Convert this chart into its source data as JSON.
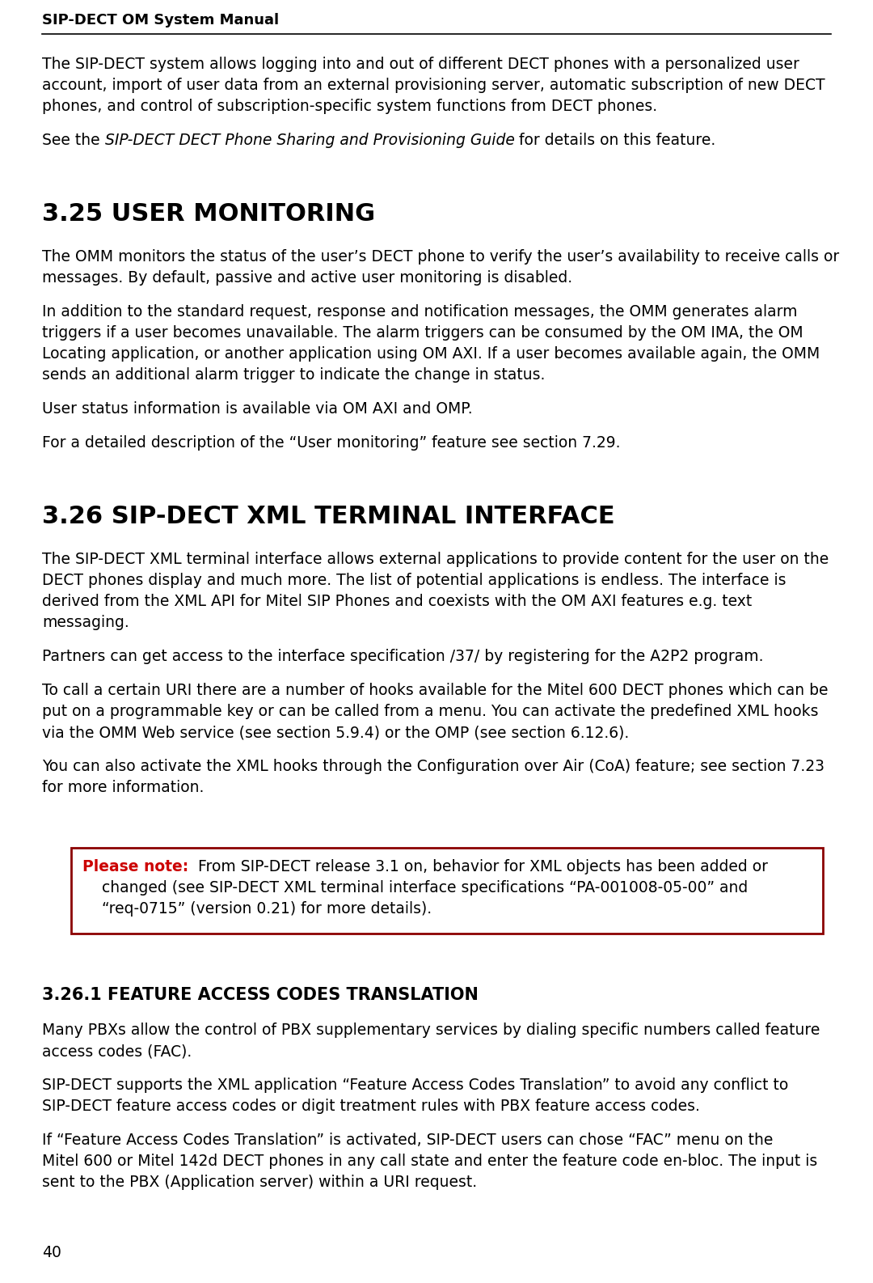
{
  "header_text": "SIP-DECT OM System Manual",
  "footer_text": "40",
  "bg_color": "#ffffff",
  "text_color": "#000000",
  "header_color": "#000000",
  "red_color": "#cc0000",
  "border_color": "#8B0000",
  "sections": [
    {
      "type": "intro_paragraph",
      "groups": [
        {
          "lines": [
            "The SIP-DECT system allows logging into and out of different DECT phones with a personalized user",
            "account, import of user data from an external provisioning server, automatic subscription of new DECT",
            "phones, and control of subscription-specific system functions from DECT phones."
          ]
        },
        {
          "lines": [
            {
              "parts": [
                {
                  "text": "See the ",
                  "style": "normal"
                },
                {
                  "text": "SIP-DECT DECT Phone Sharing and Provisioning Guide",
                  "style": "italic"
                },
                {
                  "text": " for details on this feature.",
                  "style": "normal"
                }
              ]
            }
          ]
        }
      ]
    },
    {
      "type": "heading",
      "text": "3.25 USER MONITORING"
    },
    {
      "type": "paragraph",
      "groups": [
        {
          "lines": [
            "The OMM monitors the status of the user’s DECT phone to verify the user’s availability to receive calls or",
            "messages. By default, passive and active user monitoring is disabled."
          ]
        },
        {
          "lines": [
            "In addition to the standard request, response and notification messages, the OMM generates alarm",
            "triggers if a user becomes unavailable. The alarm triggers can be consumed by the OM IMA, the OM",
            "Locating application, or another application using OM AXI. If a user becomes available again, the OMM",
            "sends an additional alarm trigger to indicate the change in status."
          ]
        },
        {
          "lines": [
            "User status information is available via OM AXI and OMP."
          ]
        },
        {
          "lines": [
            "For a detailed description of the “User monitoring” feature see section 7.29."
          ]
        }
      ]
    },
    {
      "type": "heading",
      "text": "3.26 SIP-DECT XML TERMINAL INTERFACE"
    },
    {
      "type": "paragraph",
      "groups": [
        {
          "lines": [
            "The SIP-DECT XML terminal interface allows external applications to provide content for the user on the",
            "DECT phones display and much more. The list of potential applications is endless. The interface is",
            "derived from the XML API for Mitel SIP Phones and coexists with the OM AXI features e.g. text",
            "messaging."
          ]
        },
        {
          "lines": [
            "Partners can get access to the interface specification /37/ by registering for the A2P2 program."
          ]
        },
        {
          "lines": [
            "To call a certain URI there are a number of hooks available for the Mitel 600 DECT phones which can be",
            "put on a programmable key or can be called from a menu. You can activate the predefined XML hooks",
            "via the OMM Web service (see section 5.9.4) or the OMP (see section 6.12.6)."
          ]
        },
        {
          "lines": [
            "You can also activate the XML hooks through the Configuration over Air (CoA) feature; see section 7.23",
            "for more information."
          ]
        }
      ]
    },
    {
      "type": "note_box",
      "bold_prefix": "Please note:",
      "line1_rest": "  From SIP-DECT release 3.1 on, behavior for XML objects has been added or",
      "line2": "    changed (see SIP-DECT XML terminal interface specifications “PA-001008-05-00” and",
      "line3": "    “req-0715” (version 0.21) for more details)."
    },
    {
      "type": "subheading",
      "text": "3.26.1 FEATURE ACCESS CODES TRANSLATION"
    },
    {
      "type": "paragraph",
      "groups": [
        {
          "lines": [
            "Many PBXs allow the control of PBX supplementary services by dialing specific numbers called feature",
            "access codes (FAC)."
          ]
        },
        {
          "lines": [
            "SIP-DECT supports the XML application “Feature Access Codes Translation” to avoid any conflict to",
            "SIP-DECT feature access codes or digit treatment rules with PBX feature access codes."
          ]
        },
        {
          "lines": [
            "If “Feature Access Codes Translation” is activated, SIP-DECT users can chose “FAC” menu on the",
            "Mitel 600 or Mitel 142d DECT phones in any call state and enter the feature code en-bloc. The input is",
            "sent to the PBX (Application server) within a URI request."
          ]
        }
      ]
    }
  ]
}
